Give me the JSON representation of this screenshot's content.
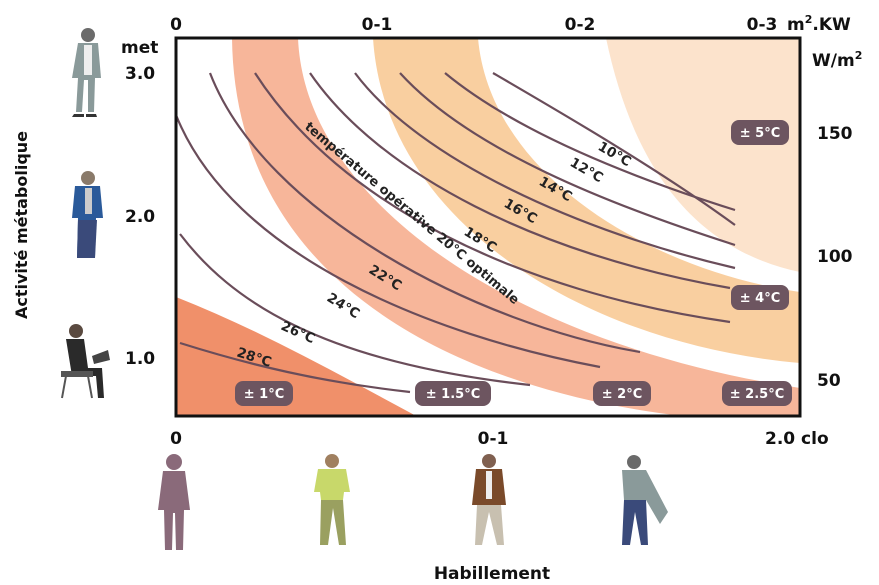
{
  "top_axis": {
    "ticks": [
      "0",
      "0-1",
      "0-2",
      "0-3"
    ],
    "unit": "m",
    "unit_sup": "2",
    "unit_rest": ".KW"
  },
  "right_axis": {
    "unit": "W/m",
    "unit_sup": "2",
    "ticks": [
      "150",
      "100",
      "50"
    ]
  },
  "left_axis": {
    "unit": "met",
    "ticks": [
      "3.0",
      "2.0",
      "1.0"
    ],
    "title": "Activité métabolique"
  },
  "bottom_axis": {
    "ticks": [
      "0",
      "0-1",
      "2.0 clo"
    ],
    "title": "Habillement"
  },
  "optimal_label": "température opérative 20°C optimale",
  "isotherm_labels": [
    "10°C",
    "12°C",
    "14°C",
    "16°C",
    "18°C",
    "22°C",
    "24°C",
    "26°C",
    "28°C"
  ],
  "tolerance_badges": [
    "± 1°C",
    "± 1.5°C",
    "± 2°C",
    "± 2.5°C",
    "± 4°C",
    "± 5°C"
  ],
  "colors": {
    "band_1": "#f0906a",
    "band_2": "#f7b69a",
    "band_4": "#f9cfa0",
    "band_5": "#fce3cc",
    "curve": "#6a4d5a",
    "badge": "#6d5560"
  },
  "figures": {
    "left": [
      "standing-person-icon",
      "walking-person-blue-icon",
      "seated-person-laptop-icon"
    ],
    "bottom": [
      "nude-person-icon",
      "tshirt-person-icon",
      "jacket-person-icon",
      "coat-person-icon"
    ]
  }
}
